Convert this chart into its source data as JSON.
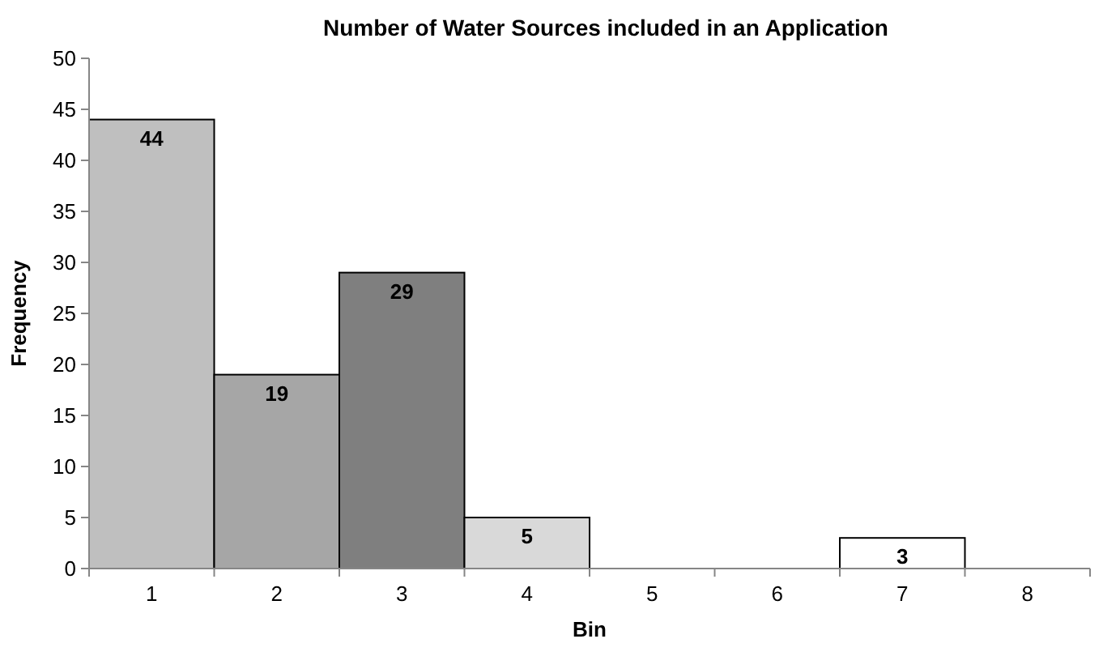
{
  "chart_data": {
    "type": "bar",
    "title": "Number of Water Sources included in an Application",
    "xlabel": "Bin",
    "ylabel": "Frequency",
    "categories": [
      "1",
      "2",
      "3",
      "4",
      "5",
      "6",
      "7",
      "8"
    ],
    "values": [
      44,
      19,
      29,
      5,
      0,
      0,
      3,
      0
    ],
    "colors": [
      "#bfbfbf",
      "#a6a6a6",
      "#7f7f7f",
      "#d9d9d9",
      "#ffffff",
      "#ffffff",
      "#ffffff",
      "#ffffff"
    ],
    "value_labels": [
      "44",
      "19",
      "29",
      "5",
      null,
      null,
      "3",
      null
    ],
    "ylim": [
      0,
      50
    ],
    "yticks": [
      0,
      5,
      10,
      15,
      20,
      25,
      30,
      35,
      40,
      45,
      50
    ],
    "grid": false
  }
}
